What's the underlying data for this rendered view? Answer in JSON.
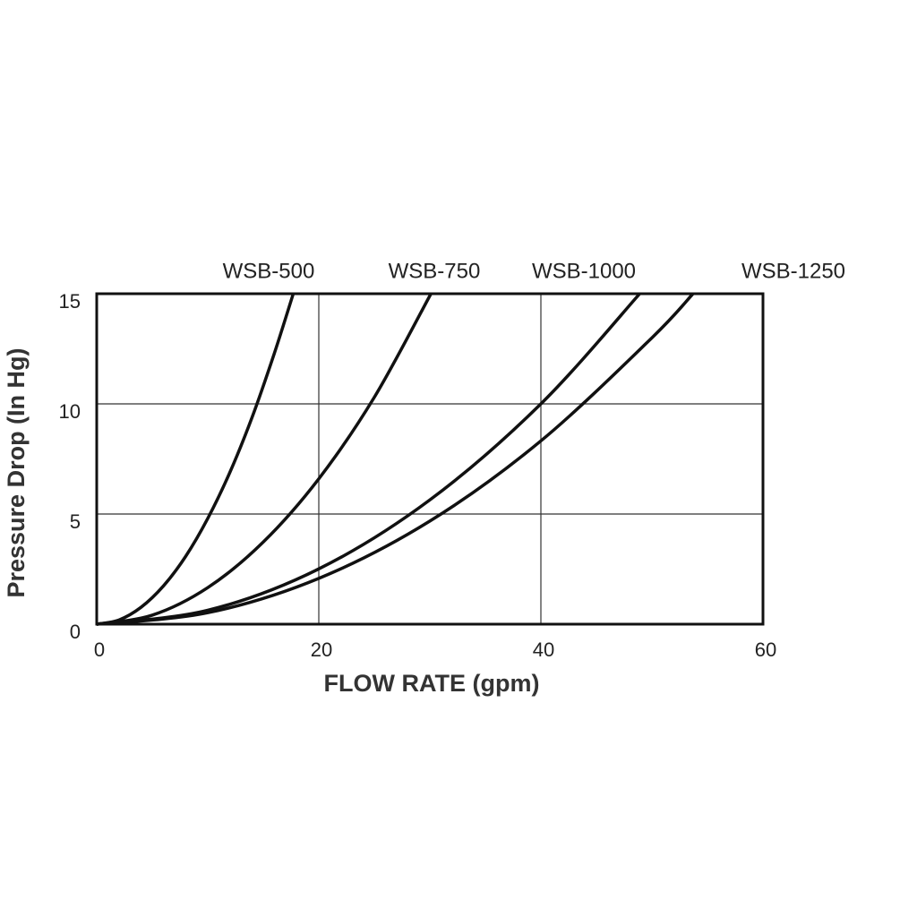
{
  "chart_data": {
    "type": "line",
    "x_label": "FLOW RATE (gpm)",
    "y_label": "Pressure Drop (In Hg)",
    "xlim": [
      0,
      60
    ],
    "xticks": [
      0,
      20,
      40,
      60
    ],
    "ylim": [
      0,
      15
    ],
    "yticks": [
      0,
      5,
      10,
      15
    ],
    "grid": true,
    "series": [
      {
        "name": "WSB-500",
        "color": "#111111",
        "x": [
          0,
          2,
          4,
          6,
          8,
          10,
          12,
          14,
          16,
          17.7
        ],
        "values": [
          0,
          0.19,
          0.77,
          1.73,
          3.07,
          4.8,
          6.9,
          9.4,
          12.3,
          15
        ]
      },
      {
        "name": "WSB-750",
        "color": "#111111",
        "x": [
          0,
          5,
          10,
          15,
          20,
          25,
          30.1
        ],
        "values": [
          0,
          0.41,
          1.66,
          3.73,
          6.6,
          10.3,
          15
        ]
      },
      {
        "name": "WSB-1000",
        "color": "#111111",
        "x": [
          0,
          10,
          20,
          30,
          40,
          48.9
        ],
        "values": [
          0,
          0.63,
          2.51,
          5.64,
          10.0,
          15
        ]
      },
      {
        "name": "WSB-1250",
        "color": "#111111",
        "x": [
          0,
          10,
          20,
          30,
          40,
          50,
          53.7
        ],
        "values": [
          0,
          0.52,
          2.08,
          4.68,
          8.32,
          13.0,
          15
        ]
      }
    ]
  }
}
